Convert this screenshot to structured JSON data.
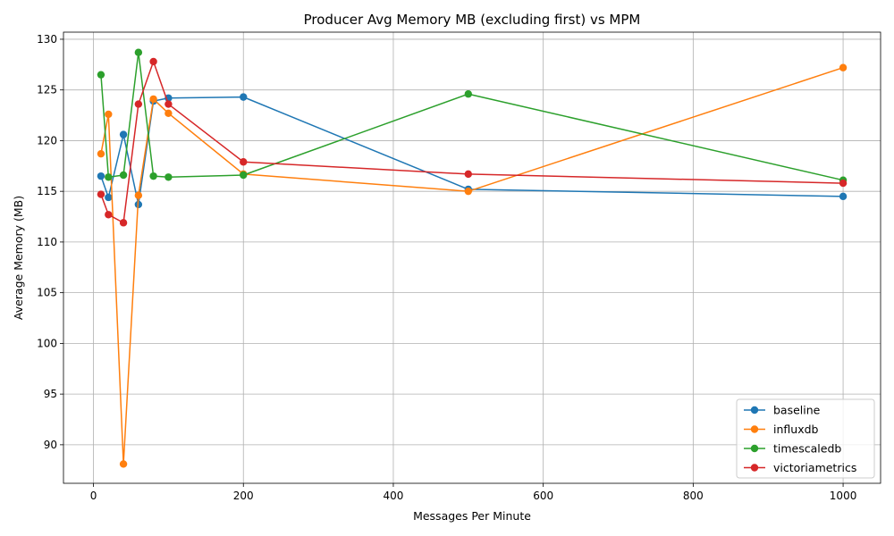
{
  "chart_data": {
    "type": "line",
    "title": "Producer Avg Memory MB (excluding first) vs MPM",
    "xlabel": "Messages Per Minute",
    "ylabel": "Average Memory (MB)",
    "xlim": [
      -40,
      1050
    ],
    "ylim": [
      86.2,
      130.7
    ],
    "xticks": [
      0,
      200,
      400,
      600,
      800,
      1000
    ],
    "yticks": [
      90,
      95,
      100,
      105,
      110,
      115,
      120,
      125,
      130
    ],
    "grid": true,
    "legend_position": "lower-right",
    "series": [
      {
        "name": "baseline",
        "color": "#1f77b4",
        "x": [
          10,
          20,
          40,
          60,
          80,
          100,
          200,
          500,
          1000
        ],
        "y": [
          116.5,
          114.4,
          120.6,
          113.7,
          123.9,
          124.2,
          124.3,
          115.2,
          114.5
        ]
      },
      {
        "name": "influxdb",
        "color": "#ff7f0e",
        "x": [
          10,
          20,
          40,
          60,
          80,
          100,
          200,
          500,
          1000
        ],
        "y": [
          118.7,
          122.6,
          88.1,
          114.6,
          124.1,
          122.7,
          116.7,
          115.0,
          127.2
        ]
      },
      {
        "name": "timescaledb",
        "color": "#2ca02c",
        "x": [
          10,
          20,
          40,
          60,
          80,
          100,
          200,
          500,
          1000
        ],
        "y": [
          126.5,
          116.4,
          116.6,
          128.7,
          116.5,
          116.4,
          116.6,
          124.6,
          116.1
        ]
      },
      {
        "name": "victoriametrics",
        "color": "#d62728",
        "x": [
          10,
          20,
          40,
          60,
          80,
          100,
          200,
          500,
          1000
        ],
        "y": [
          114.7,
          112.7,
          111.9,
          123.6,
          127.8,
          123.6,
          117.9,
          116.7,
          115.8
        ]
      }
    ]
  }
}
